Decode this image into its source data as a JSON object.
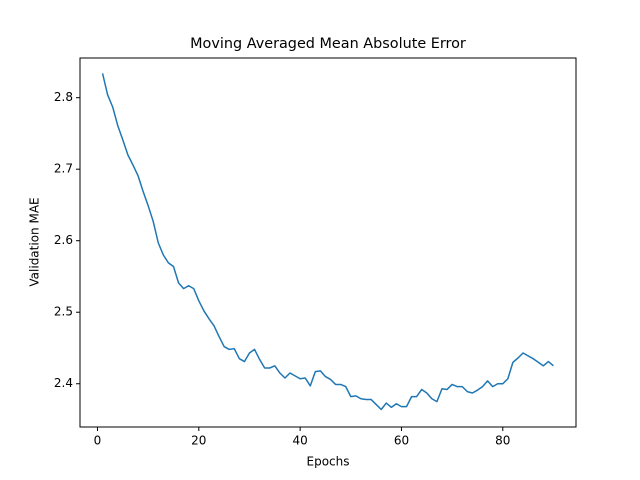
{
  "chart_data": {
    "type": "line",
    "title": "Moving Averaged Mean Absolute Error",
    "x_label": "Epochs",
    "y_label": "Validation MAE",
    "x": [
      1,
      2,
      3,
      4,
      5,
      6,
      7,
      8,
      9,
      10,
      11,
      12,
      13,
      14,
      15,
      16,
      17,
      18,
      19,
      20,
      21,
      22,
      23,
      24,
      25,
      26,
      27,
      28,
      29,
      30,
      31,
      32,
      33,
      34,
      35,
      36,
      37,
      38,
      39,
      40,
      41,
      42,
      43,
      44,
      45,
      46,
      47,
      48,
      49,
      50,
      51,
      52,
      53,
      54,
      55,
      56,
      57,
      58,
      59,
      60,
      61,
      62,
      63,
      64,
      65,
      66,
      67,
      68,
      69,
      70,
      71,
      72,
      73,
      74,
      75,
      76,
      77,
      78,
      79,
      80,
      81,
      82,
      83,
      84,
      85,
      86,
      87,
      88,
      89,
      90
    ],
    "series": [
      {
        "color": "#1f77b4",
        "values": [
          2.834,
          2.804,
          2.787,
          2.761,
          2.741,
          2.72,
          2.706,
          2.691,
          2.669,
          2.649,
          2.627,
          2.597,
          2.58,
          2.569,
          2.564,
          2.541,
          2.533,
          2.537,
          2.533,
          2.516,
          2.502,
          2.491,
          2.481,
          2.466,
          2.452,
          2.448,
          2.449,
          2.435,
          2.431,
          2.443,
          2.448,
          2.434,
          2.422,
          2.422,
          2.425,
          2.415,
          2.408,
          2.415,
          2.411,
          2.407,
          2.408,
          2.397,
          2.417,
          2.418,
          2.41,
          2.406,
          2.399,
          2.399,
          2.396,
          2.382,
          2.383,
          2.379,
          2.378,
          2.378,
          2.371,
          2.364,
          2.373,
          2.367,
          2.372,
          2.368,
          2.368,
          2.382,
          2.382,
          2.392,
          2.387,
          2.379,
          2.375,
          2.393,
          2.392,
          2.399,
          2.396,
          2.396,
          2.389,
          2.387,
          2.391,
          2.396,
          2.404,
          2.396,
          2.4,
          2.4,
          2.407,
          2.43,
          2.436,
          2.443,
          2.439,
          2.435,
          2.43,
          2.425,
          2.431,
          2.425
        ]
      }
    ],
    "xlim": [
      -3.45,
      94.45
    ],
    "ylim": [
      2.3395,
      2.8555
    ],
    "xticks": [
      0,
      20,
      40,
      60,
      80
    ],
    "yticks": [
      2.4,
      2.5,
      2.6,
      2.7,
      2.8
    ]
  }
}
